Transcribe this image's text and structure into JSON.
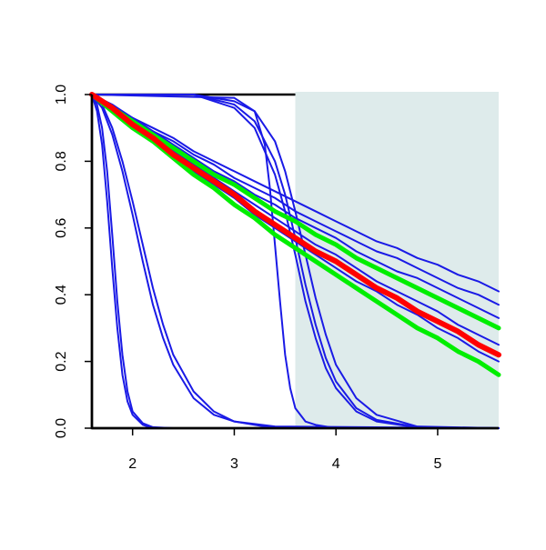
{
  "chart_data": {
    "type": "line",
    "xlim": [
      1.6,
      5.6
    ],
    "ylim": [
      0,
      1
    ],
    "xticks": [
      2,
      3,
      4,
      5
    ],
    "yticks": [
      {
        "value": 0,
        "label": "0.0"
      },
      {
        "value": 0.2,
        "label": "0.2"
      },
      {
        "value": 0.4,
        "label": "0.4"
      },
      {
        "value": 0.6,
        "label": "0.6"
      },
      {
        "value": 0.8,
        "label": "0.8"
      },
      {
        "value": 1,
        "label": "1.0"
      }
    ],
    "shade": {
      "xrange": [
        3.6,
        5.6
      ],
      "color": "#deebeb"
    },
    "series": [
      {
        "color": "#1a1ae6",
        "linewidth": 2,
        "x": [
          1.6,
          1.65,
          1.7,
          1.75,
          1.8,
          1.85,
          1.9,
          1.95,
          2.0,
          2.1,
          2.2,
          2.4,
          5.6
        ],
        "values": [
          1,
          0.95,
          0.85,
          0.68,
          0.48,
          0.3,
          0.16,
          0.08,
          0.04,
          0.01,
          0,
          0,
          0
        ]
      },
      {
        "color": "#1a1ae6",
        "linewidth": 2,
        "x": [
          1.6,
          1.65,
          1.7,
          1.75,
          1.8,
          1.85,
          1.9,
          1.95,
          2.0,
          2.1,
          2.2,
          2.4,
          5.6
        ],
        "values": [
          1,
          0.97,
          0.9,
          0.77,
          0.58,
          0.38,
          0.22,
          0.11,
          0.05,
          0.015,
          0.003,
          0,
          0
        ]
      },
      {
        "color": "#1a1ae6",
        "linewidth": 2,
        "x": [
          1.6,
          1.7,
          1.8,
          1.9,
          2.0,
          2.1,
          2.2,
          2.3,
          2.4,
          2.6,
          2.8,
          3.0,
          3.4,
          5.6
        ],
        "values": [
          1,
          0.96,
          0.88,
          0.77,
          0.64,
          0.5,
          0.37,
          0.27,
          0.19,
          0.09,
          0.04,
          0.02,
          0,
          0
        ]
      },
      {
        "color": "#1a1ae6",
        "linewidth": 2,
        "x": [
          1.6,
          1.7,
          1.8,
          1.9,
          2.0,
          2.1,
          2.2,
          2.3,
          2.4,
          2.6,
          2.8,
          3.0,
          3.4,
          5.6
        ],
        "values": [
          1,
          0.97,
          0.9,
          0.8,
          0.68,
          0.55,
          0.42,
          0.31,
          0.22,
          0.11,
          0.05,
          0.02,
          0.005,
          0
        ]
      },
      {
        "color": "#1a1ae6",
        "linewidth": 2,
        "x": [
          1.6,
          3.0,
          3.2,
          3.3,
          3.35,
          3.4,
          3.45,
          3.5,
          3.55,
          3.6,
          3.7,
          3.8,
          4.0,
          5.6
        ],
        "values": [
          1,
          0.99,
          0.95,
          0.85,
          0.72,
          0.55,
          0.38,
          0.22,
          0.12,
          0.06,
          0.02,
          0.01,
          0,
          0
        ]
      },
      {
        "color": "#1a1ae6",
        "linewidth": 2,
        "x": [
          1.6,
          2.6,
          3.0,
          3.2,
          3.4,
          3.5,
          3.6,
          3.7,
          3.8,
          3.9,
          4.0,
          4.2,
          4.4,
          4.8,
          5.6
        ],
        "values": [
          1,
          1,
          0.97,
          0.92,
          0.8,
          0.7,
          0.57,
          0.43,
          0.31,
          0.21,
          0.14,
          0.06,
          0.025,
          0.003,
          0
        ]
      },
      {
        "color": "#1a1ae6",
        "linewidth": 2,
        "x": [
          1.6,
          2.6,
          3.0,
          3.2,
          3.4,
          3.5,
          3.6,
          3.7,
          3.8,
          3.9,
          4.0,
          4.2,
          4.4,
          4.8,
          5.6
        ],
        "values": [
          1,
          1,
          0.98,
          0.95,
          0.86,
          0.77,
          0.65,
          0.52,
          0.39,
          0.28,
          0.19,
          0.09,
          0.04,
          0.005,
          0
        ]
      },
      {
        "color": "#1a1ae6",
        "linewidth": 2,
        "x": [
          1.6,
          2.6,
          3.0,
          3.2,
          3.4,
          3.5,
          3.6,
          3.7,
          3.8,
          3.9,
          4.0,
          4.2,
          4.4,
          4.8,
          5.6
        ],
        "values": [
          1,
          1,
          0.96,
          0.9,
          0.76,
          0.65,
          0.52,
          0.38,
          0.27,
          0.18,
          0.12,
          0.05,
          0.02,
          0.002,
          0
        ]
      },
      {
        "color": "#1a1ae6",
        "linewidth": 2,
        "x": [
          1.6,
          1.8,
          2.0,
          2.2,
          2.4,
          2.6,
          2.8,
          3.0,
          3.2,
          3.4,
          3.6,
          3.8,
          4.0,
          4.2,
          4.4,
          4.6,
          4.8,
          5.0,
          5.2,
          5.4,
          5.6
        ],
        "values": [
          1,
          0.97,
          0.93,
          0.9,
          0.87,
          0.83,
          0.8,
          0.77,
          0.74,
          0.71,
          0.68,
          0.65,
          0.62,
          0.59,
          0.56,
          0.54,
          0.51,
          0.49,
          0.46,
          0.44,
          0.41
        ]
      },
      {
        "color": "#1a1ae6",
        "linewidth": 2,
        "x": [
          1.6,
          1.8,
          2.0,
          2.2,
          2.4,
          2.6,
          2.8,
          3.0,
          3.2,
          3.4,
          3.6,
          3.8,
          4.0,
          4.2,
          4.4,
          4.6,
          4.8,
          5.0,
          5.2,
          5.4,
          5.6
        ],
        "values": [
          1,
          0.96,
          0.93,
          0.89,
          0.86,
          0.82,
          0.79,
          0.75,
          0.72,
          0.69,
          0.65,
          0.62,
          0.59,
          0.56,
          0.53,
          0.51,
          0.48,
          0.45,
          0.42,
          0.4,
          0.37
        ]
      },
      {
        "color": "#1a1ae6",
        "linewidth": 2,
        "x": [
          1.6,
          1.8,
          2.0,
          2.2,
          2.4,
          2.6,
          2.8,
          3.0,
          3.2,
          3.4,
          3.6,
          3.8,
          4.0,
          4.2,
          4.4,
          4.6,
          4.8,
          5.0,
          5.2,
          5.4,
          5.6
        ],
        "values": [
          1,
          0.96,
          0.92,
          0.89,
          0.85,
          0.81,
          0.77,
          0.74,
          0.7,
          0.67,
          0.63,
          0.6,
          0.57,
          0.53,
          0.5,
          0.47,
          0.45,
          0.42,
          0.39,
          0.36,
          0.33
        ]
      },
      {
        "color": "#1a1ae6",
        "linewidth": 2,
        "x": [
          1.6,
          1.8,
          2.0,
          2.2,
          2.4,
          2.6,
          2.8,
          3.0,
          3.2,
          3.4,
          3.6,
          3.8,
          4.0,
          4.2,
          4.4,
          4.6,
          4.8,
          5.0,
          5.2,
          5.4,
          5.6
        ],
        "values": [
          1,
          0.96,
          0.91,
          0.87,
          0.83,
          0.79,
          0.75,
          0.71,
          0.67,
          0.63,
          0.59,
          0.55,
          0.52,
          0.48,
          0.44,
          0.41,
          0.38,
          0.35,
          0.31,
          0.28,
          0.25
        ]
      },
      {
        "color": "#1a1ae6",
        "linewidth": 2,
        "x": [
          1.6,
          1.8,
          2.0,
          2.2,
          2.4,
          2.6,
          2.8,
          3.0,
          3.2,
          3.4,
          3.6,
          3.8,
          4.0,
          4.2,
          4.4,
          4.6,
          4.8,
          5.0,
          5.2,
          5.4,
          5.6
        ],
        "values": [
          1,
          0.95,
          0.91,
          0.86,
          0.82,
          0.77,
          0.73,
          0.69,
          0.64,
          0.6,
          0.56,
          0.52,
          0.48,
          0.44,
          0.41,
          0.37,
          0.34,
          0.3,
          0.27,
          0.23,
          0.2
        ]
      },
      {
        "color": "#00ee00",
        "linewidth": 5,
        "x": [
          1.6,
          1.8,
          2.0,
          2.2,
          2.4,
          2.6,
          2.8,
          3.0,
          3.2,
          3.4,
          3.6,
          3.8,
          4.0,
          4.2,
          4.4,
          4.6,
          4.8,
          5.0,
          5.2,
          5.4,
          5.6
        ],
        "values": [
          1,
          0.96,
          0.92,
          0.88,
          0.84,
          0.8,
          0.76,
          0.73,
          0.69,
          0.65,
          0.62,
          0.58,
          0.55,
          0.51,
          0.48,
          0.45,
          0.42,
          0.39,
          0.36,
          0.33,
          0.3
        ]
      },
      {
        "color": "#00ee00",
        "linewidth": 5,
        "x": [
          1.6,
          1.8,
          2.0,
          2.2,
          2.4,
          2.6,
          2.8,
          3.0,
          3.2,
          3.4,
          3.6,
          3.8,
          4.0,
          4.2,
          4.4,
          4.6,
          4.8,
          5.0,
          5.2,
          5.4,
          5.6
        ],
        "values": [
          1,
          0.95,
          0.9,
          0.86,
          0.81,
          0.76,
          0.72,
          0.67,
          0.63,
          0.58,
          0.54,
          0.5,
          0.46,
          0.42,
          0.38,
          0.34,
          0.3,
          0.27,
          0.23,
          0.2,
          0.16
        ]
      },
      {
        "color": "#ff0000",
        "linewidth": 6,
        "x": [
          1.6,
          1.8,
          2.0,
          2.2,
          2.4,
          2.6,
          2.8,
          3.0,
          3.2,
          3.4,
          3.6,
          3.8,
          4.0,
          4.2,
          4.4,
          4.6,
          4.8,
          5.0,
          5.2,
          5.4,
          5.6
        ],
        "values": [
          1,
          0.96,
          0.91,
          0.87,
          0.82,
          0.78,
          0.74,
          0.7,
          0.65,
          0.61,
          0.57,
          0.53,
          0.5,
          0.46,
          0.42,
          0.39,
          0.35,
          0.32,
          0.29,
          0.25,
          0.22
        ]
      }
    ]
  }
}
